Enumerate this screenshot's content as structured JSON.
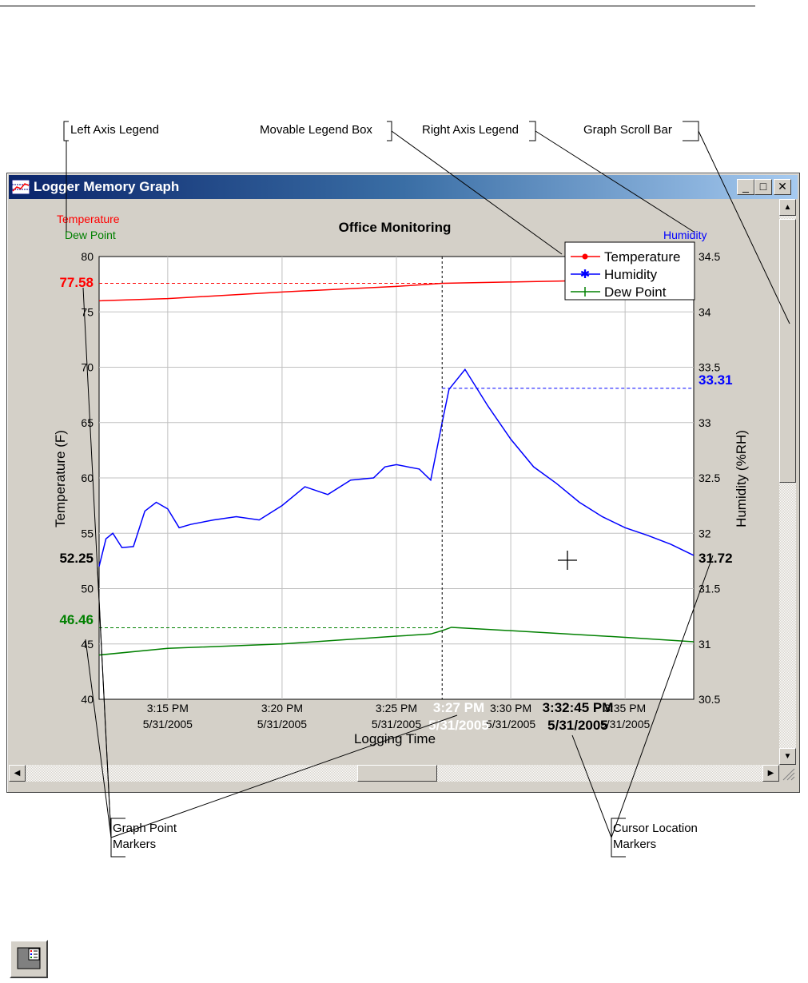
{
  "callouts": {
    "left_axis_legend": "Left Axis Legend",
    "movable_legend_box": "Movable Legend Box",
    "right_axis_legend": "Right Axis Legend",
    "graph_scroll_bar": "Graph Scroll Bar",
    "graph_point_markers_1": "Graph Point",
    "graph_point_markers_2": "Markers",
    "cursor_location_markers_1": "Cursor Location",
    "cursor_location_markers_2": "Markers"
  },
  "window": {
    "title": "Logger Memory Graph",
    "icon": "graph-window-icon",
    "controls": [
      "minimize-icon",
      "maximize-icon",
      "close-icon"
    ]
  },
  "axis_legend": {
    "left_1": "Temperature",
    "left_2": "Dew Point",
    "right": "Humidity"
  },
  "markers": {
    "temperature": "77.58",
    "humidity": "33.31",
    "dew_point": "46.46",
    "cursor_left": "52.25",
    "cursor_right": "31.72",
    "point_time_1": "3:27 PM",
    "point_time_2": "5/31/2005",
    "cursor_time_1": "3:32:45 PM",
    "cursor_time_2": "5/31/2005"
  },
  "colors": {
    "temperature": "#ff0000",
    "humidity": "#0000ff",
    "dew_point": "#008000"
  },
  "chart_data": {
    "type": "line",
    "title": "Office Monitoring",
    "xlabel": "Logging Time",
    "ylabel_left": "Temperature (F)",
    "ylabel_right": "Humidity (%RH)",
    "ylim_left": [
      40,
      80
    ],
    "ylim_right": [
      30.5,
      34.5
    ],
    "yticks_left": [
      "80",
      "75",
      "70",
      "65",
      "60",
      "55",
      "50",
      "45",
      "40"
    ],
    "yticks_right": [
      "34.5",
      "34",
      "33.5",
      "33",
      "32.5",
      "32",
      "31.5",
      "31",
      "30.5"
    ],
    "xticks": [
      {
        "t1": "3:15 PM",
        "t2": "5/31/2005"
      },
      {
        "t1": "3:20 PM",
        "t2": "5/31/2005"
      },
      {
        "t1": "3:25 PM",
        "t2": "5/31/2005"
      },
      {
        "t1": "3:30 PM",
        "t2": "5/31/2005"
      },
      {
        "t1": "3:35 PM",
        "t2": "5/31/2005"
      }
    ],
    "grid": true,
    "legend": [
      "Temperature",
      "Humidity",
      "Dew Point"
    ],
    "legend_position": "top-right",
    "series": [
      {
        "name": "Temperature",
        "axis": "left",
        "x": [
          "3:12",
          "3:15",
          "3:20",
          "3:25",
          "3:27",
          "3:30",
          "3:35",
          "3:38"
        ],
        "values": [
          76.0,
          76.2,
          76.8,
          77.3,
          77.58,
          77.7,
          77.9,
          78.0
        ]
      },
      {
        "name": "Humidity",
        "axis": "right",
        "x": [
          "3:12",
          "3:12.3",
          "3:12.6",
          "3:13",
          "3:13.5",
          "3:14",
          "3:14.5",
          "3:15",
          "3:15.5",
          "3:16",
          "3:17",
          "3:18",
          "3:19",
          "3:20",
          "3:21",
          "3:22",
          "3:23",
          "3:24",
          "3:24.5",
          "3:25",
          "3:26",
          "3:26.5",
          "3:27",
          "3:27.3",
          "3:28",
          "3:29",
          "3:30",
          "3:31",
          "3:32",
          "3:33",
          "3:34",
          "3:35",
          "3:36",
          "3:37",
          "3:38"
        ],
        "values": [
          31.7,
          31.95,
          32.0,
          31.87,
          31.88,
          32.2,
          32.28,
          32.22,
          32.05,
          32.08,
          32.12,
          32.15,
          32.12,
          32.25,
          32.42,
          32.35,
          32.48,
          32.5,
          32.6,
          32.62,
          32.58,
          32.48,
          33.0,
          33.3,
          33.48,
          33.15,
          32.85,
          32.6,
          32.45,
          32.28,
          32.15,
          32.05,
          31.98,
          31.9,
          31.8
        ]
      },
      {
        "name": "Dew Point",
        "axis": "left",
        "x": [
          "3:12",
          "3:15",
          "3:20",
          "3:25",
          "3:26.5",
          "3:27",
          "3:27.4",
          "3:30",
          "3:35",
          "3:38"
        ],
        "values": [
          44.0,
          44.6,
          45.0,
          45.7,
          45.9,
          46.2,
          46.5,
          46.2,
          45.6,
          45.2
        ]
      }
    ]
  }
}
